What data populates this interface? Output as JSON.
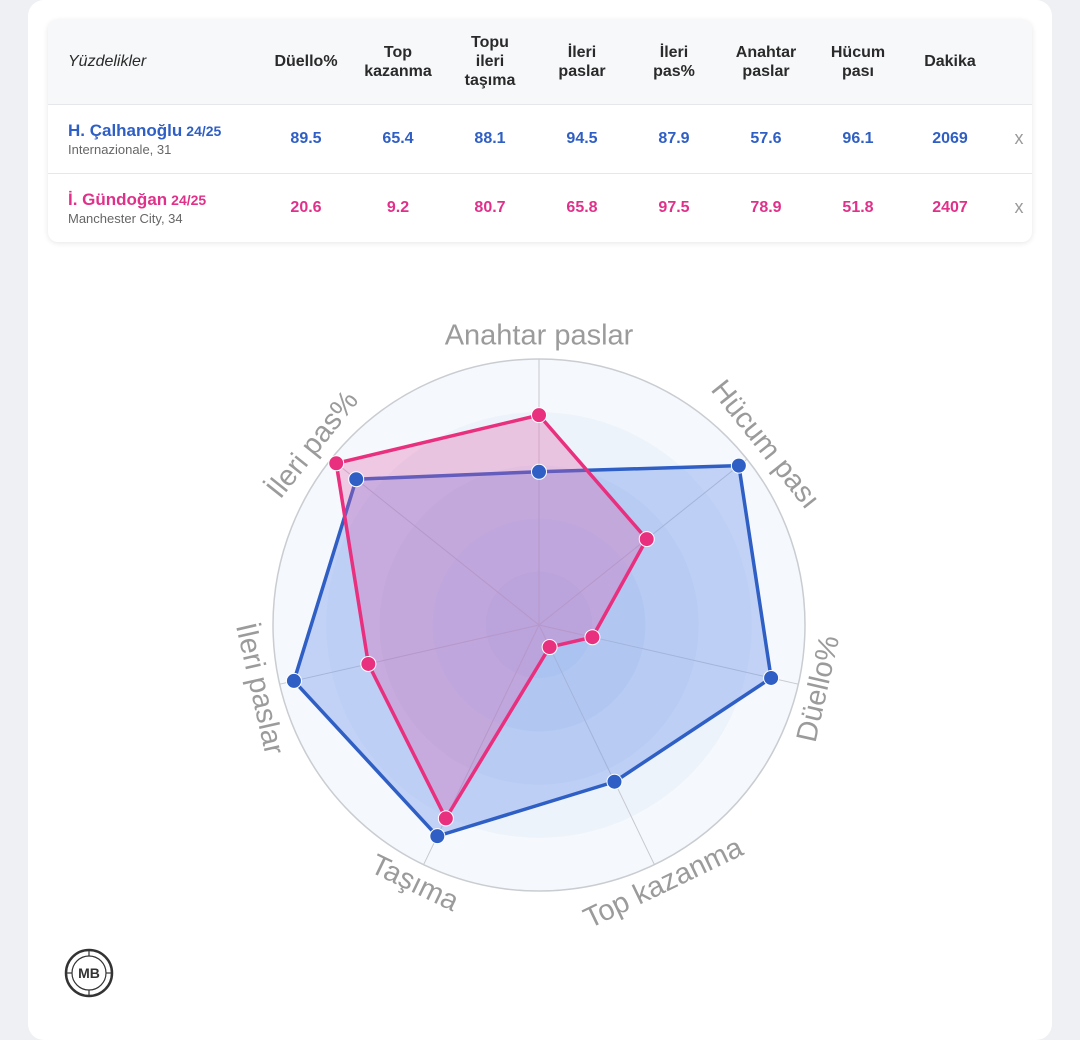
{
  "table": {
    "header_label": "Yüzdelikler",
    "columns": [
      "Düello%",
      "Top\nkazanma",
      "Topu\nileri\ntaşıma",
      "İleri\npaslar",
      "İleri\npas%",
      "Anahtar\npaslar",
      "Hücum\npası",
      "Dakika"
    ],
    "remove_symbol": "x",
    "rows": [
      {
        "name": "H. Çalhanoğlu",
        "season": "24/25",
        "team": "Internazionale, 31",
        "color": "#2f5fc4",
        "values": [
          "89.5",
          "65.4",
          "88.1",
          "94.5",
          "87.9",
          "57.6",
          "96.1",
          "2069"
        ]
      },
      {
        "name": "İ. Gündoğan",
        "season": "24/25",
        "team": "Manchester City, 34",
        "color": "#e0318a",
        "values": [
          "20.6",
          "9.2",
          "80.7",
          "65.8",
          "97.5",
          "78.9",
          "51.8",
          "2407"
        ]
      }
    ]
  },
  "chart_data": {
    "type": "radar",
    "axes": [
      "Anahtar paslar",
      "Hücum pası",
      "Düello%",
      "Top kazanma",
      "Taşıma",
      "İleri paslar",
      "İleri pas%"
    ],
    "range": [
      0,
      100
    ],
    "series": [
      {
        "name": "H. Çalhanoğlu",
        "color": "#2f5fc4",
        "fill": "rgba(100,140,235,0.35)",
        "values": [
          57.6,
          96.1,
          89.5,
          65.4,
          88.1,
          94.5,
          87.9
        ]
      },
      {
        "name": "İ. Gündoğan",
        "color": "#e8307f",
        "fill": "rgba(225,90,170,0.30)",
        "values": [
          78.9,
          51.8,
          20.6,
          9.2,
          80.7,
          65.8,
          97.5
        ]
      }
    ]
  },
  "logo": {
    "text": "MB"
  }
}
